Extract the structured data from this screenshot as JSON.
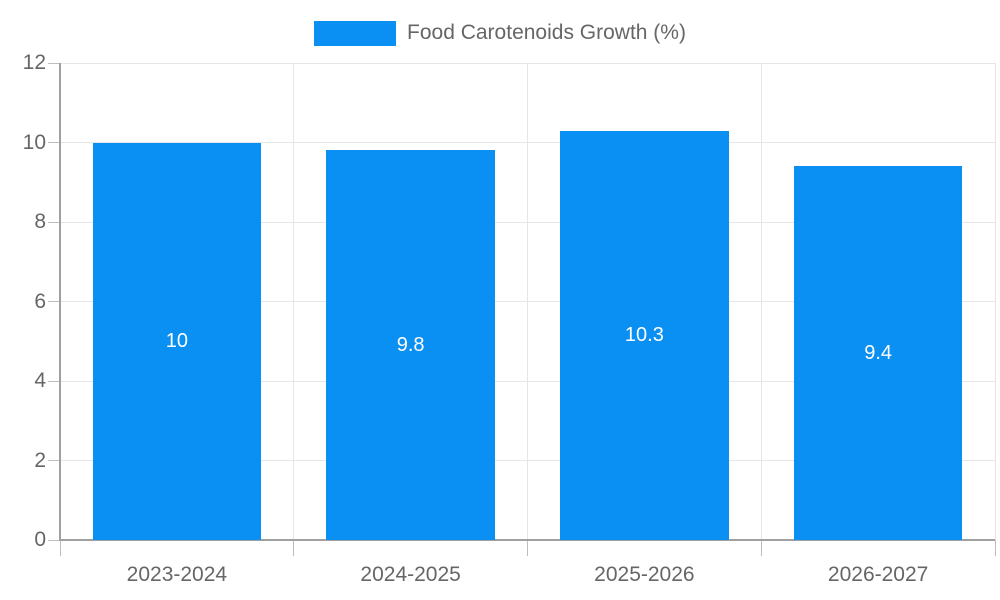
{
  "chart_data": {
    "type": "bar",
    "title": "",
    "xlabel": "",
    "ylabel": "",
    "legend": {
      "position": "top",
      "label": "Food Carotenoids Growth (%)"
    },
    "categories": [
      "2023-2024",
      "2024-2025",
      "2025-2026",
      "2026-2027"
    ],
    "series": [
      {
        "name": "Food Carotenoids Growth (%)",
        "values": [
          10,
          9.8,
          10.3,
          9.4
        ]
      }
    ],
    "bar_labels": [
      "10",
      "9.8",
      "10.3",
      "9.4"
    ],
    "yticks": [
      "0",
      "2",
      "4",
      "6",
      "8",
      "10",
      "12"
    ],
    "ylim": [
      0,
      12
    ],
    "grid": true,
    "colors": {
      "bar": "#0a8ff2",
      "bar_label_text": "#ffffff",
      "grid_line": "#e6e6e6",
      "axis_line": "#a0a0a0",
      "tick_mark": "#bdbdbd",
      "tick_text": "#666666",
      "legend_text": "#666666",
      "background": "#ffffff"
    }
  }
}
